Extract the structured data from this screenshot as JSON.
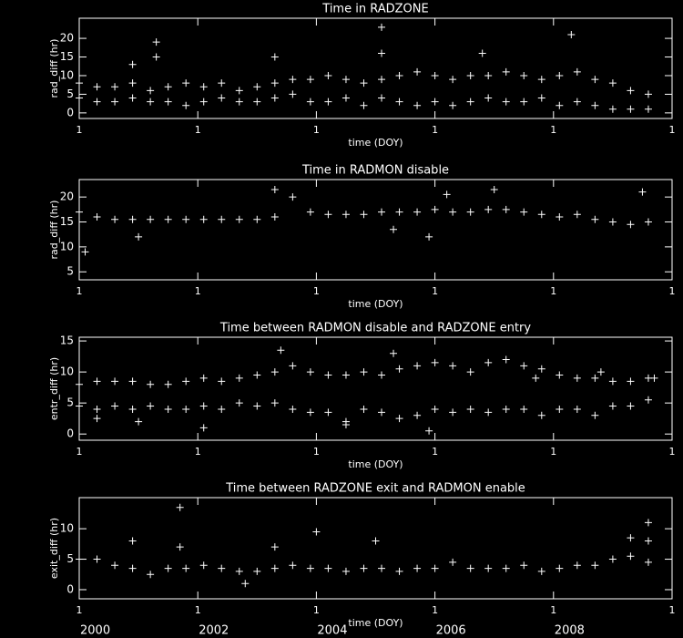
{
  "chart_data": [
    {
      "type": "scatter",
      "title": "Time in RADZONE",
      "xlabel": "time (DOY)",
      "ylabel": "rad_diff (hr)",
      "color": "#ffffff",
      "xlim": [
        2000,
        2010
      ],
      "xticks": [
        {
          "value": 2000,
          "label": "1"
        },
        {
          "value": 2002,
          "label": "1"
        },
        {
          "value": 2004,
          "label": "1"
        },
        {
          "value": 2006,
          "label": "1"
        },
        {
          "value": 2008,
          "label": "1"
        },
        {
          "value": 2010,
          "label": "1"
        }
      ],
      "ylim": [
        -1.5,
        25.4
      ],
      "yticks": [
        0,
        5,
        10,
        15,
        20
      ],
      "x": [
        2000.0,
        2000.3,
        2000.6,
        2000.9,
        2001.2,
        2001.5,
        2001.8,
        2002.1,
        2002.4,
        2002.7,
        2003.0,
        2003.3,
        2003.6,
        2003.9,
        2004.2,
        2004.5,
        2004.8,
        2005.1,
        2005.4,
        2005.7,
        2006.0,
        2006.3,
        2006.6,
        2006.9,
        2007.2,
        2007.5,
        2007.8,
        2008.1,
        2008.4,
        2008.7,
        2009.0,
        2009.3,
        2009.6,
        2000.0,
        2000.3,
        2000.6,
        2000.9,
        2001.2,
        2001.5,
        2001.8,
        2002.1,
        2002.4,
        2002.7,
        2003.0,
        2003.3,
        2003.6,
        2003.9,
        2004.2,
        2004.5,
        2004.8,
        2005.1,
        2005.4,
        2005.7,
        2006.0,
        2006.3,
        2006.6,
        2006.9,
        2007.2,
        2007.5,
        2007.8,
        2008.1,
        2008.4,
        2008.7,
        2009.0,
        2009.3,
        2009.6,
        2000.9,
        2001.3,
        2001.3,
        2005.1,
        2005.1,
        2008.3,
        2006.8,
        2003.3
      ],
      "values": [
        8,
        7,
        7,
        8,
        6,
        7,
        8,
        7,
        8,
        6,
        7,
        8,
        9,
        9,
        10,
        9,
        8,
        9,
        10,
        11,
        10,
        9,
        10,
        10,
        11,
        10,
        9,
        10,
        11,
        9,
        8,
        6,
        5,
        4,
        3,
        3,
        4,
        3,
        3,
        2,
        3,
        4,
        3,
        3,
        4,
        5,
        3,
        3,
        4,
        2,
        4,
        3,
        2,
        3,
        2,
        3,
        4,
        3,
        3,
        4,
        2,
        3,
        2,
        1,
        1,
        1,
        13,
        19,
        15,
        23,
        16,
        21,
        16,
        15
      ]
    },
    {
      "type": "scatter",
      "title": "Time in RADMON disable",
      "xlabel": "time (DOY)",
      "ylabel": "rad_diff (hr)",
      "color": "#ffffff",
      "xlim": [
        2000,
        2010
      ],
      "xticks": [
        {
          "value": 2000,
          "label": "1"
        },
        {
          "value": 2002,
          "label": "1"
        },
        {
          "value": 2004,
          "label": "1"
        },
        {
          "value": 2006,
          "label": "1"
        },
        {
          "value": 2008,
          "label": "1"
        },
        {
          "value": 2010,
          "label": "1"
        }
      ],
      "ylim": [
        3.4,
        23.5
      ],
      "yticks": [
        5,
        10,
        15,
        20
      ],
      "x": [
        2000.0,
        2000.3,
        2000.6,
        2000.9,
        2001.2,
        2001.5,
        2001.8,
        2002.1,
        2002.4,
        2002.7,
        2003.0,
        2003.3,
        2003.6,
        2003.9,
        2004.2,
        2004.5,
        2004.8,
        2005.1,
        2005.4,
        2005.7,
        2006.0,
        2006.3,
        2006.6,
        2006.9,
        2007.2,
        2007.5,
        2007.8,
        2008.1,
        2008.4,
        2008.7,
        2009.0,
        2009.3,
        2009.6,
        2000.1,
        2001.0,
        2005.9,
        2006.2,
        2007.0,
        2009.5,
        2005.3,
        2003.3
      ],
      "values": [
        17,
        16,
        15.5,
        15.5,
        15.5,
        15.5,
        15.5,
        15.5,
        15.5,
        15.5,
        15.5,
        16,
        20,
        17,
        16.5,
        16.5,
        16.5,
        17,
        17,
        17,
        17.5,
        17,
        17,
        17.5,
        17.5,
        17,
        16.5,
        16,
        16.5,
        15.5,
        15,
        14.5,
        15,
        9,
        12,
        12,
        20.5,
        21.5,
        21,
        13.5,
        21.5
      ]
    },
    {
      "type": "scatter",
      "title": "Time between RADMON disable and RADZONE entry",
      "xlabel": "time (DOY)",
      "ylabel": "entr_diff (hr)",
      "color": "#ffffff",
      "xlim": [
        2000,
        2010
      ],
      "xticks": [
        {
          "value": 2000,
          "label": "1"
        },
        {
          "value": 2002,
          "label": "1"
        },
        {
          "value": 2004,
          "label": "1"
        },
        {
          "value": 2006,
          "label": "1"
        },
        {
          "value": 2008,
          "label": "1"
        },
        {
          "value": 2010,
          "label": "1"
        }
      ],
      "ylim": [
        -1.0,
        15.6
      ],
      "yticks": [
        0,
        5,
        10,
        15
      ],
      "x": [
        2000.0,
        2000.3,
        2000.6,
        2000.9,
        2001.2,
        2001.5,
        2001.8,
        2002.1,
        2002.4,
        2002.7,
        2003.0,
        2003.3,
        2003.6,
        2003.9,
        2004.2,
        2004.5,
        2004.8,
        2005.1,
        2005.4,
        2005.7,
        2006.0,
        2006.3,
        2006.6,
        2006.9,
        2007.2,
        2007.5,
        2007.8,
        2008.1,
        2008.4,
        2008.7,
        2009.0,
        2009.3,
        2009.6,
        2000.0,
        2000.3,
        2000.6,
        2000.9,
        2001.2,
        2001.5,
        2001.8,
        2002.1,
        2002.4,
        2002.7,
        2003.0,
        2003.3,
        2003.6,
        2003.9,
        2004.2,
        2004.5,
        2004.8,
        2005.1,
        2005.4,
        2005.7,
        2006.0,
        2006.3,
        2006.6,
        2006.9,
        2007.2,
        2007.5,
        2007.8,
        2008.1,
        2008.4,
        2008.7,
        2009.0,
        2009.3,
        2009.6,
        2003.4,
        2005.3,
        2001.0,
        2000.3,
        2002.1,
        2004.5,
        2005.9,
        2007.7,
        2008.8,
        2009.7
      ],
      "values": [
        8,
        8.5,
        8.5,
        8.5,
        8,
        8,
        8.5,
        9,
        8.5,
        9,
        9.5,
        10,
        11,
        10,
        9.5,
        9.5,
        10,
        9.5,
        10.5,
        11,
        11.5,
        11,
        10,
        11.5,
        12,
        11,
        10.5,
        9.5,
        9,
        9,
        8.5,
        8.5,
        9,
        4.5,
        4,
        4.5,
        4,
        4.5,
        4,
        4,
        4.5,
        4,
        5,
        4.5,
        5,
        4,
        3.5,
        3.5,
        2,
        4,
        3.5,
        2.5,
        3,
        4,
        3.5,
        4,
        3.5,
        4,
        4,
        3,
        4,
        4,
        3,
        4.5,
        4.5,
        5.5,
        13.5,
        13,
        2,
        2.5,
        1,
        1.5,
        0.5,
        9,
        10,
        9
      ]
    },
    {
      "type": "scatter",
      "title": "Time between RADZONE exit and RADMON enable",
      "xlabel": "time (DOY)",
      "ylabel": "exit_diff (hr)",
      "color": "#ffffff",
      "xlim": [
        2000,
        2010
      ],
      "xticks": [
        {
          "value": 2000,
          "label": "1"
        },
        {
          "value": 2002,
          "label": "1"
        },
        {
          "value": 2004,
          "label": "1"
        },
        {
          "value": 2006,
          "label": "1"
        },
        {
          "value": 2008,
          "label": "1"
        },
        {
          "value": 2010,
          "label": "1"
        }
      ],
      "ylim": [
        -1.5,
        15.1
      ],
      "yticks": [
        0,
        5,
        10
      ],
      "year_labels": [
        {
          "value": 2000,
          "label": "2000"
        },
        {
          "value": 2002,
          "label": "2002"
        },
        {
          "value": 2004,
          "label": "2004"
        },
        {
          "value": 2006,
          "label": "2006"
        },
        {
          "value": 2008,
          "label": "2008"
        }
      ],
      "x": [
        2000.0,
        2000.3,
        2000.6,
        2000.9,
        2001.2,
        2001.5,
        2001.8,
        2002.1,
        2002.4,
        2002.7,
        2003.0,
        2003.3,
        2003.6,
        2003.9,
        2004.2,
        2004.5,
        2004.8,
        2005.1,
        2005.4,
        2005.7,
        2006.0,
        2006.3,
        2006.6,
        2006.9,
        2007.2,
        2007.5,
        2007.8,
        2008.1,
        2008.4,
        2008.7,
        2009.0,
        2009.3,
        2009.6,
        2001.7,
        2004.0,
        2000.9,
        2001.7,
        2005.0,
        2009.6,
        2009.6,
        2009.3,
        2002.8,
        2003.3
      ],
      "values": [
        5,
        5,
        4,
        3.5,
        2.5,
        3.5,
        3.5,
        4,
        3.5,
        3,
        3,
        3.5,
        4,
        3.5,
        3.5,
        3,
        3.5,
        3.5,
        3,
        3.5,
        3.5,
        4.5,
        3.5,
        3.5,
        3.5,
        4,
        3,
        3.5,
        4,
        4,
        5,
        5.5,
        4.5,
        13.5,
        9.5,
        8,
        7,
        8,
        11,
        8,
        8.5,
        1,
        7
      ]
    }
  ]
}
